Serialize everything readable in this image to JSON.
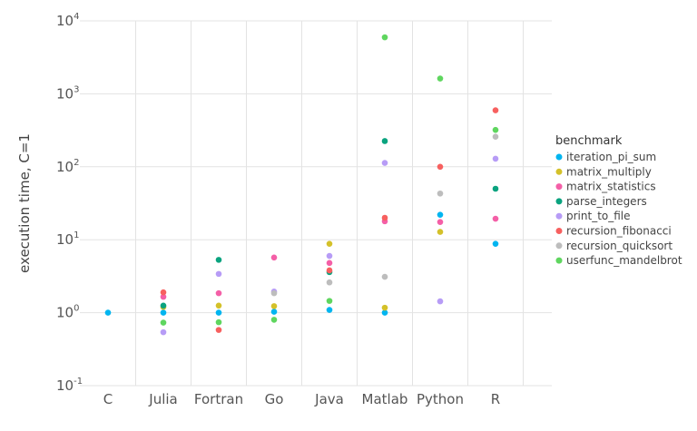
{
  "chart_data": {
    "type": "scatter",
    "ylabel": "execution time, C=1",
    "yscale": "log",
    "ylim": [
      0.1,
      10000
    ],
    "yticks": [
      {
        "base": "10",
        "exp": "-1",
        "value": 0.1
      },
      {
        "base": "10",
        "exp": "0",
        "value": 1
      },
      {
        "base": "10",
        "exp": "1",
        "value": 10
      },
      {
        "base": "10",
        "exp": "2",
        "value": 100
      },
      {
        "base": "10",
        "exp": "3",
        "value": 1000
      },
      {
        "base": "10",
        "exp": "4",
        "value": 10000
      }
    ],
    "categories": [
      "C",
      "Julia",
      "Fortran",
      "Go",
      "Java",
      "Matlab",
      "Python",
      "R"
    ],
    "grid": true,
    "legend_position": "right",
    "legend_title": "benchmark",
    "series": [
      {
        "name": "iteration_pi_sum",
        "color": "#00b5f0",
        "values": [
          1.0,
          1.0,
          1.0,
          1.03,
          1.09,
          1.0,
          22.0,
          8.8
        ]
      },
      {
        "name": "matrix_multiply",
        "color": "#d4c12a",
        "values": [
          null,
          1.2,
          1.25,
          1.23,
          8.8,
          1.17,
          12.8,
          null
        ]
      },
      {
        "name": "matrix_statistics",
        "color": "#f45fa7",
        "values": [
          null,
          1.65,
          1.85,
          5.7,
          4.8,
          17.9,
          17.5,
          19.4
        ]
      },
      {
        "name": "parse_integers",
        "color": "#0aa37f",
        "values": [
          null,
          1.25,
          5.3,
          null,
          3.6,
          225,
          null,
          50
        ]
      },
      {
        "name": "print_to_file",
        "color": "#b79cf6",
        "values": [
          null,
          0.54,
          3.4,
          1.95,
          6.0,
          113,
          1.43,
          129
        ]
      },
      {
        "name": "recursion_fibonacci",
        "color": "#f7605f",
        "values": [
          null,
          1.9,
          0.58,
          null,
          3.8,
          20,
          100,
          595
        ]
      },
      {
        "name": "recursion_quicksort",
        "color": "#bdbdbd",
        "values": [
          null,
          null,
          null,
          1.85,
          2.6,
          3.1,
          43,
          258
        ]
      },
      {
        "name": "userfunc_mandelbrot",
        "color": "#5fd65f",
        "values": [
          null,
          0.73,
          0.74,
          0.8,
          1.45,
          5950,
          1620,
          320
        ]
      }
    ]
  }
}
